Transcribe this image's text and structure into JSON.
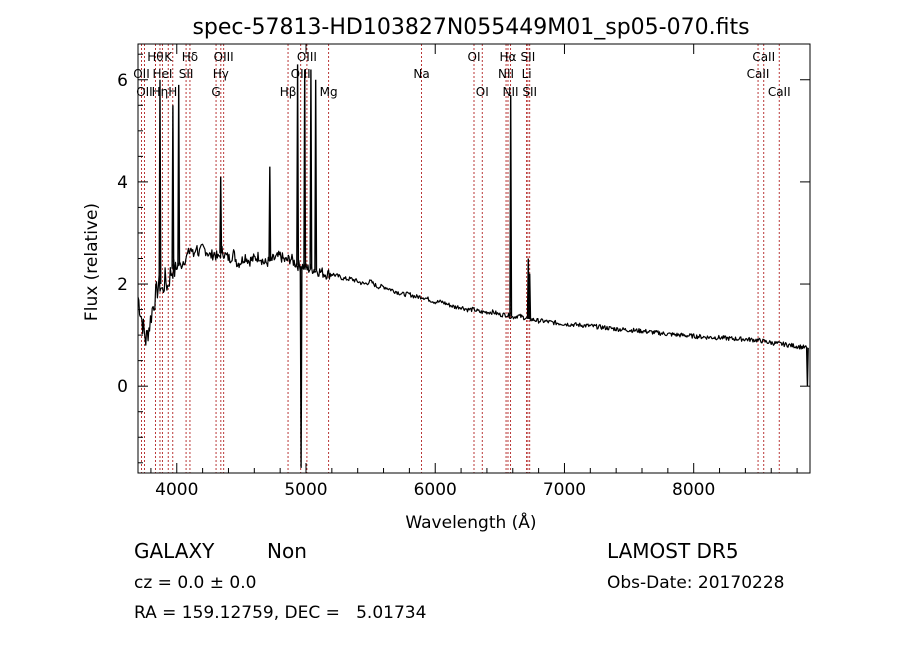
{
  "chart_data": {
    "type": "line",
    "title": "spec-57813-HD103827N055449M01_sp05-070.fits",
    "xlabel": "Wavelength (Å)",
    "ylabel": "Flux (relative)",
    "xlim": [
      3700,
      8900
    ],
    "ylim": [
      -1.7,
      6.7
    ],
    "xticks": [
      4000,
      5000,
      6000,
      7000,
      8000
    ],
    "yticks": [
      0,
      2,
      4,
      6
    ],
    "colors": {
      "spectrum": "#000000",
      "line_markers": "#b22222"
    },
    "spectrum": {
      "x": [
        3700,
        3730,
        3760,
        3790,
        3810,
        3830,
        3850,
        3870,
        3890,
        3910,
        3930,
        3950,
        3970,
        3990,
        4010,
        4030,
        4050,
        4070,
        4090,
        4110,
        4130,
        4150,
        4170,
        4200,
        4230,
        4260,
        4290,
        4320,
        4350,
        4380,
        4410,
        4440,
        4470,
        4500,
        4530,
        4560,
        4600,
        4640,
        4680,
        4720,
        4760,
        4800,
        4840,
        4880,
        4920,
        4950,
        4980,
        5010,
        5050,
        5100,
        5150,
        5200,
        5250,
        5300,
        5350,
        5400,
        5450,
        5500,
        5550,
        5600,
        5650,
        5700,
        5750,
        5800,
        5850,
        5900,
        5950,
        6000,
        6050,
        6100,
        6150,
        6200,
        6250,
        6300,
        6350,
        6400,
        6450,
        6500,
        6550,
        6600,
        6640,
        6680,
        6720,
        6760,
        6800,
        6850,
        6900,
        7000,
        7100,
        7200,
        7300,
        7400,
        7500,
        7600,
        7700,
        7800,
        7900,
        8000,
        8100,
        8200,
        8300,
        8400,
        8500,
        8600,
        8700,
        8800,
        8880
      ],
      "y": [
        1.75,
        1.3,
        0.9,
        1.2,
        1.5,
        1.7,
        1.9,
        2.0,
        1.85,
        2.1,
        1.95,
        2.2,
        2.3,
        2.25,
        2.4,
        2.35,
        2.45,
        2.5,
        2.6,
        2.7,
        2.55,
        2.75,
        2.6,
        2.7,
        2.65,
        2.55,
        2.6,
        2.5,
        2.65,
        2.55,
        2.5,
        2.6,
        2.4,
        2.45,
        2.55,
        2.45,
        2.5,
        2.55,
        2.4,
        2.45,
        2.5,
        2.55,
        2.45,
        2.5,
        2.4,
        2.35,
        2.35,
        2.3,
        2.3,
        2.25,
        2.2,
        2.2,
        2.15,
        2.1,
        2.1,
        2.05,
        2.0,
        2.05,
        1.95,
        1.95,
        1.9,
        1.85,
        1.8,
        1.8,
        1.75,
        1.75,
        1.7,
        1.65,
        1.65,
        1.6,
        1.55,
        1.55,
        1.5,
        1.5,
        1.45,
        1.45,
        1.45,
        1.4,
        1.4,
        1.35,
        1.38,
        1.35,
        1.32,
        1.3,
        1.28,
        1.27,
        1.25,
        1.22,
        1.2,
        1.18,
        1.15,
        1.12,
        1.1,
        1.08,
        1.05,
        1.02,
        1.0,
        0.98,
        0.96,
        0.95,
        0.93,
        0.92,
        0.9,
        0.85,
        0.82,
        0.78,
        0.75
      ],
      "spikes": [
        {
          "x": 3870,
          "y": 6.0
        },
        {
          "x": 3970,
          "y": 5.5
        },
        {
          "x": 4015,
          "y": 5.9
        },
        {
          "x": 4340,
          "y": 4.1
        },
        {
          "x": 4720,
          "y": 4.3
        },
        {
          "x": 4935,
          "y": 6.3
        },
        {
          "x": 4962,
          "y": -1.6
        },
        {
          "x": 4990,
          "y": 6.2
        },
        {
          "x": 5038,
          "y": 6.2
        },
        {
          "x": 5075,
          "y": 6.0
        },
        {
          "x": 6584,
          "y": 5.7
        },
        {
          "x": 6720,
          "y": 2.5
        },
        {
          "x": 6731,
          "y": 2.2
        },
        {
          "x": 8880,
          "y": 0.0
        }
      ]
    },
    "lines": [
      {
        "x": 3727,
        "label": "OII",
        "row": 1
      },
      {
        "x": 3750,
        "label": "OII",
        "row": 2
      },
      {
        "x": 3835,
        "label": "Hθ",
        "row": 0
      },
      {
        "x": 3870,
        "label": "Hη",
        "row": 2
      },
      {
        "x": 3889,
        "label": "HeI",
        "row": 1
      },
      {
        "x": 3934,
        "label": "K",
        "row": 0
      },
      {
        "x": 3969,
        "label": "H",
        "row": 2
      },
      {
        "x": 4072,
        "label": "SII",
        "row": 1
      },
      {
        "x": 4102,
        "label": "Hδ",
        "row": 0
      },
      {
        "x": 4304,
        "label": "G",
        "row": 2
      },
      {
        "x": 4341,
        "label": "Hγ",
        "row": 1
      },
      {
        "x": 4363,
        "label": "OIII",
        "row": 0
      },
      {
        "x": 4861,
        "label": "Hβ",
        "row": 2
      },
      {
        "x": 4959,
        "label": "OIII",
        "row": 1
      },
      {
        "x": 5007,
        "label": "OIII",
        "row": 0
      },
      {
        "x": 5175,
        "label": "Mg",
        "row": 2
      },
      {
        "x": 5894,
        "label": "Na",
        "row": 1
      },
      {
        "x": 6300,
        "label": "OI",
        "row": 0
      },
      {
        "x": 6364,
        "label": "OI",
        "row": 2
      },
      {
        "x": 6548,
        "label": "NII",
        "row": 1
      },
      {
        "x": 6563,
        "label": "Hα",
        "row": 0
      },
      {
        "x": 6583,
        "label": "NII",
        "row": 2
      },
      {
        "x": 6707,
        "label": "Li",
        "row": 1
      },
      {
        "x": 6717,
        "label": "SII",
        "row": 0
      },
      {
        "x": 6731,
        "label": "SII",
        "row": 2
      },
      {
        "x": 8498,
        "label": "CaII",
        "row": 1
      },
      {
        "x": 8542,
        "label": "CaII",
        "row": 0
      },
      {
        "x": 8662,
        "label": "CaII",
        "row": 2
      }
    ]
  },
  "info": {
    "class": "GALAXY",
    "subclass": "Non",
    "cz": "cz = 0.0 ± 0.0",
    "coords": "RA = 159.12759, DEC =   5.01734",
    "survey": "LAMOST DR5",
    "obs_date": "Obs-Date: 20170228"
  }
}
